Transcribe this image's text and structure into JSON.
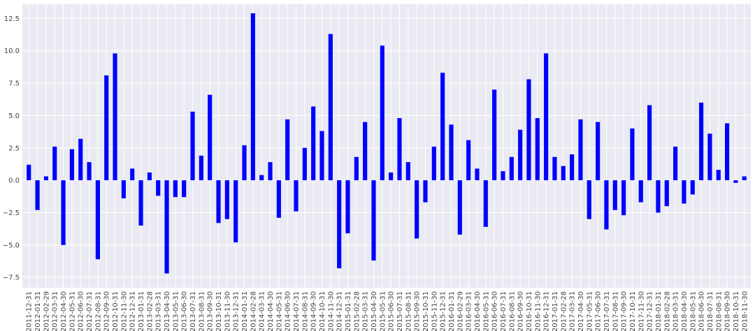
{
  "chart_data": {
    "type": "bar",
    "title": "",
    "xlabel": "",
    "ylabel": "",
    "ylim": [
      -8.3,
      13.6
    ],
    "yticks": [
      -7.5,
      -5.0,
      -2.5,
      0.0,
      2.5,
      5.0,
      7.5,
      10.0,
      12.5
    ],
    "ytick_labels": [
      "−7.5",
      "−5.0",
      "−2.5",
      "0.0",
      "2.5",
      "5.0",
      "7.5",
      "10.0",
      "12.5"
    ],
    "grid": true,
    "legend": false,
    "bar_color": "#0000ff",
    "background_color": "#eaeaf2",
    "categories": [
      "2011-12-31",
      "2012-01-31",
      "2012-02-29",
      "2012-03-31",
      "2012-04-30",
      "2012-05-31",
      "2012-06-30",
      "2012-07-31",
      "2012-08-31",
      "2012-09-30",
      "2012-10-31",
      "2012-11-30",
      "2012-12-31",
      "2013-01-31",
      "2013-02-28",
      "2013-03-31",
      "2013-04-30",
      "2013-05-31",
      "2013-06-30",
      "2013-07-31",
      "2013-08-31",
      "2013-09-30",
      "2013-10-31",
      "2013-11-30",
      "2013-12-31",
      "2014-01-31",
      "2014-02-28",
      "2014-03-31",
      "2014-04-30",
      "2014-05-31",
      "2014-06-30",
      "2014-07-31",
      "2014-08-31",
      "2014-09-30",
      "2014-10-31",
      "2014-11-30",
      "2014-12-31",
      "2015-01-31",
      "2015-02-28",
      "2015-03-31",
      "2015-04-30",
      "2015-05-31",
      "2015-06-30",
      "2015-07-31",
      "2015-08-31",
      "2015-09-30",
      "2015-10-31",
      "2015-11-30",
      "2015-12-31",
      "2016-01-31",
      "2016-02-29",
      "2016-03-31",
      "2016-04-30",
      "2016-05-31",
      "2016-06-30",
      "2016-07-31",
      "2016-08-31",
      "2016-09-30",
      "2016-10-31",
      "2016-11-30",
      "2016-12-31",
      "2017-01-31",
      "2017-02-28",
      "2017-03-31",
      "2017-04-30",
      "2017-05-31",
      "2017-06-30",
      "2017-07-31",
      "2017-08-31",
      "2017-09-30",
      "2017-10-31",
      "2017-11-30",
      "2017-12-31",
      "2018-01-31",
      "2018-02-28",
      "2018-03-31",
      "2018-04-30",
      "2018-05-31",
      "2018-06-30",
      "2018-07-31",
      "2018-08-31",
      "2018-09-30",
      "2018-10-31",
      "2018-11-30"
    ],
    "values": [
      1.2,
      -2.3,
      0.3,
      2.6,
      -5.0,
      2.4,
      3.2,
      1.4,
      -6.1,
      8.1,
      9.8,
      -1.4,
      0.9,
      -3.5,
      0.6,
      -1.2,
      -7.2,
      -1.3,
      -1.3,
      5.3,
      1.9,
      6.6,
      -3.3,
      -3.0,
      -4.8,
      2.7,
      12.9,
      0.4,
      1.4,
      -2.9,
      4.7,
      -2.4,
      2.5,
      5.7,
      3.8,
      11.3,
      -6.8,
      -4.1,
      1.8,
      4.5,
      -6.2,
      10.4,
      0.6,
      4.8,
      1.4,
      -4.5,
      -1.7,
      2.6,
      8.3,
      4.3,
      -4.2,
      3.1,
      0.9,
      -3.6,
      7.0,
      0.7,
      1.8,
      3.9,
      7.8,
      4.8,
      9.8,
      1.8,
      1.1,
      2.0,
      4.7,
      -3.0,
      4.5,
      -3.8,
      -2.3,
      -2.7,
      4.0,
      -1.7,
      5.8,
      -2.5,
      -2.0,
      2.6,
      -1.8,
      -1.1,
      6.0,
      3.6,
      0.8,
      4.4,
      -0.2,
      0.3
    ]
  }
}
